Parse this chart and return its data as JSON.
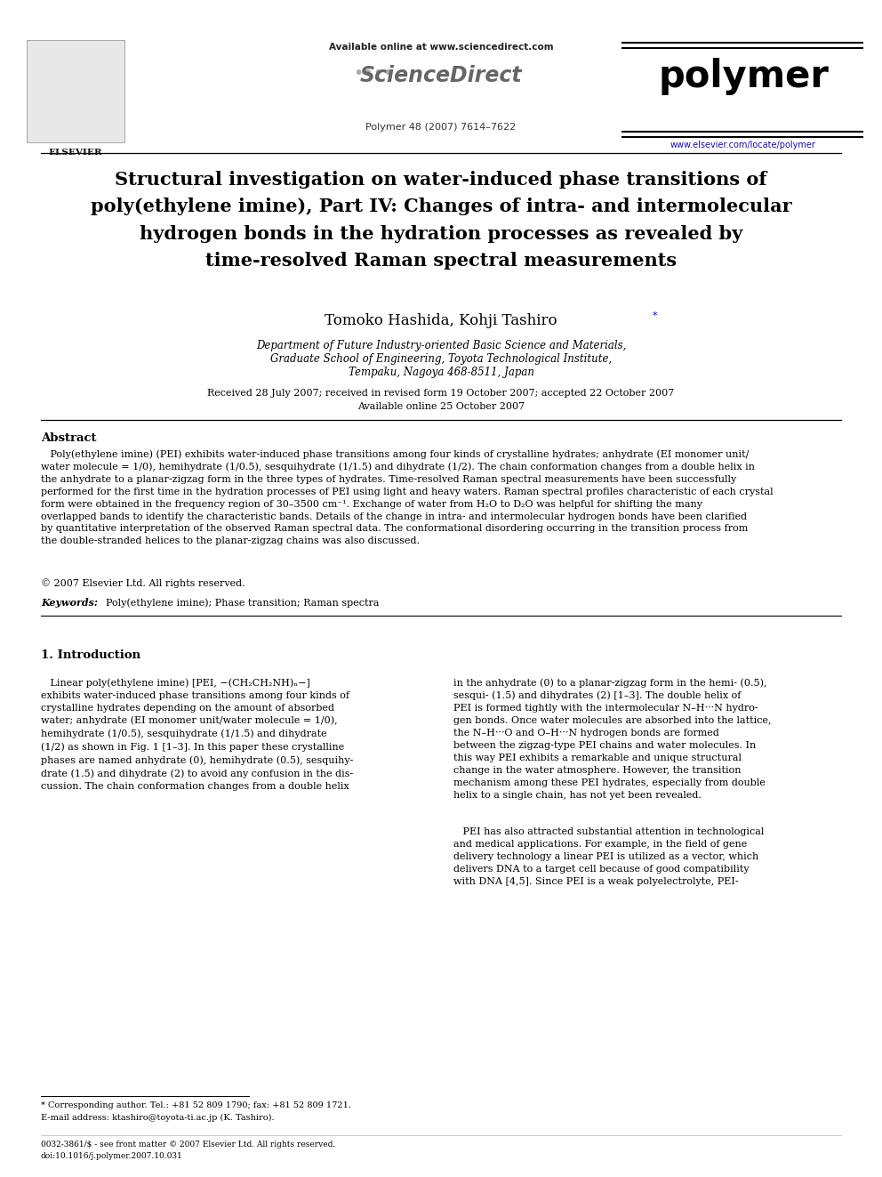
{
  "bg_color": "#ffffff",
  "available_online": "Available online at www.sciencedirect.com",
  "sciencedirect": "ScienceDirect",
  "journal": "polymer",
  "journal_info": "Polymer 48 (2007) 7614–7622",
  "url": "www.elsevier.com/locate/polymer",
  "elsevier": "ELSEVIER",
  "title_line1": "Structural investigation on water-induced phase transitions of",
  "title_line2": "poly(ethylene imine), Part IV: Changes of intra- and intermolecular",
  "title_line3": "hydrogen bonds in the hydration processes as revealed by",
  "title_line4": "time-resolved Raman spectral measurements",
  "authors": "Tomoko Hashida, Kohji Tashiro",
  "affil1": "Department of Future Industry-oriented Basic Science and Materials,",
  "affil2": "Graduate School of Engineering, Toyota Technological Institute,",
  "affil3": "Tempaku, Nagoya 468-8511, Japan",
  "received": "Received 28 July 2007; received in revised form 19 October 2007; accepted 22 October 2007",
  "avail_online": "Available online 25 October 2007",
  "abs_head": "Abstract",
  "abs_body": "   Poly(ethylene imine) (PEI) exhibits water-induced phase transitions among four kinds of crystalline hydrates; anhydrate (EI monomer unit/water molecule = 1/0), hemihydrate (1/0.5), sesquihydrate (1/1.5) and dihydrate (1/2). The chain conformation changes from a double helix in the anhydrate to a planar-zigzag form in the three types of hydrates. Time-resolved Raman spectral measurements have been successfully performed for the first time in the hydration processes of PEI using light and heavy waters. Raman spectral profiles characteristic of each crystal form were obtained in the frequency region of 30–3500 cm⁻¹. Exchange of water from H₂O to D₂O was helpful for shifting the many overlapped bands to identify the characteristic bands. Details of the change in intra- and intermolecular hydrogen bonds have been clarified by quantitative interpretation of the observed Raman spectral data. The conformational disordering occurring in the transition process from the double-stranded helices to the planar-zigzag chains was also discussed.\n© 2007 Elsevier Ltd. All rights reserved.",
  "kw_label": "Keywords:",
  "kw_text": "  Poly(ethylene imine); Phase transition; Raman spectra",
  "sec1": "1. Introduction",
  "col1_para1": "   Linear poly(ethylene imine) [PEI, −(CH₂CH₂NH)ₙ−]\nexhibits water-induced phase transitions among four kinds of\ncrystalline hydrates depending on the amount of absorbed\nwater; anhydrate (EI monomer unit/water molecule = 1/0),\nhemihydrate (1/0.5), sesquihydrate (1/1.5) and dihydrate\n(1/2) as shown in Fig. 1 [1–3]. In this paper these crystalline\nphases are named anhydrate (0), hemihydrate (0.5), sesquihy-\ndrate (1.5) and dihydrate (2) to avoid any confusion in the dis-\ncussion. The chain conformation changes from a double helix",
  "col2_para1": "in the anhydrate (0) to a planar-zigzag form in the hemi- (0.5),\nsesqui- (1.5) and dihydrates (2) [1–3]. The double helix of\nPEI is formed tightly with the intermolecular N–H···N hydro-\ngen bonds. Once water molecules are absorbed into the lattice,\nthe N–H···O and O–H···N hydrogen bonds are formed\nbetween the zigzag-type PEI chains and water molecules. In\nthis way PEI exhibits a remarkable and unique structural\nchange in the water atmosphere. However, the transition\nmechanism among these PEI hydrates, especially from double\nhelix to a single chain, has not yet been revealed.",
  "col2_para2": "   PEI has also attracted substantial attention in technological\nand medical applications. For example, in the field of gene\ndelivery technology a linear PEI is utilized as a vector, which\ndelivers DNA to a target cell because of good compatibility\nwith DNA [4,5]. Since PEI is a weak polyelectrolyte, PEI-",
  "fn1": "* Corresponding author. Tel.: +81 52 809 1790; fax: +81 52 809 1721.",
  "fn2": "E-mail address: ktashiro@toyota-ti.ac.jp (K. Tashiro).",
  "fn3": "0032-3861/$ - see front matter © 2007 Elsevier Ltd. All rights reserved.",
  "fn4": "doi:10.1016/j.polymer.2007.10.031"
}
